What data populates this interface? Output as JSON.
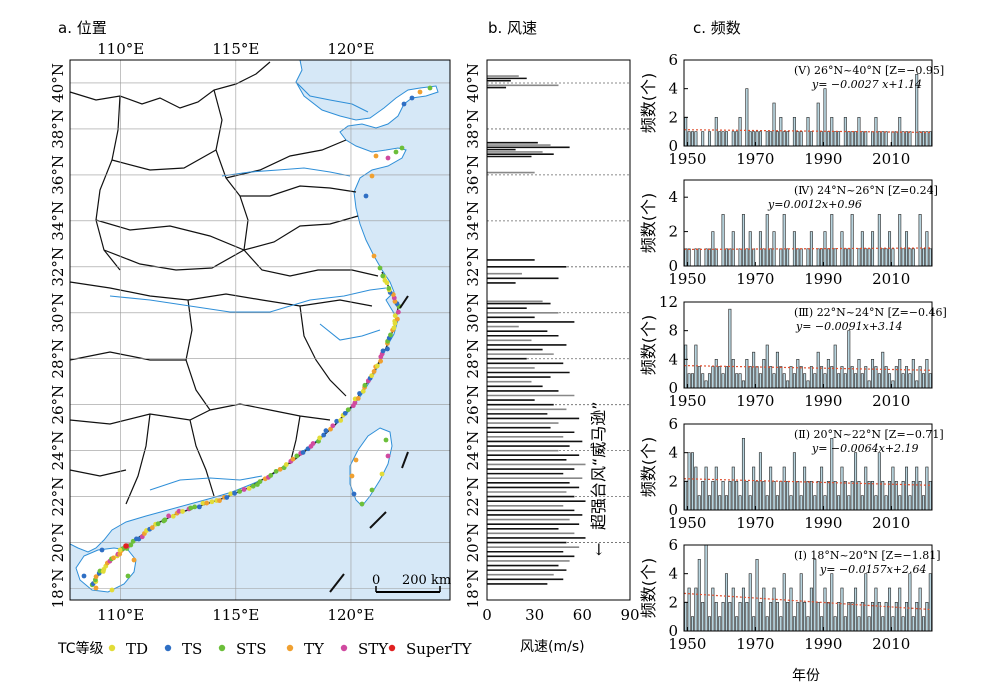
{
  "panels": {
    "a_title": "a. 位置",
    "b_title": "b. 风速",
    "c_title": "c. 频数"
  },
  "map": {
    "lon_ticks": [
      "110°E",
      "115°E",
      "120°E"
    ],
    "lat_ticks": [
      "40°N",
      "38°N",
      "36°N",
      "34°N",
      "32°N",
      "30°N",
      "28°N",
      "26°N",
      "24°N",
      "22°N",
      "20°N",
      "18°N"
    ],
    "scale_bar": {
      "zero": "0",
      "label": "200 km"
    },
    "colors": {
      "sea": "#d6e8f7",
      "land": "#ffffff",
      "river": "#2f8fd8",
      "grid": "#9a9a9a"
    },
    "legend": {
      "title": "TC等级",
      "items": [
        {
          "name": "TD",
          "color": "#e2dc38"
        },
        {
          "name": "TS",
          "color": "#2f6fc4"
        },
        {
          "name": "STS",
          "color": "#6cbf3a"
        },
        {
          "name": "TY",
          "color": "#f0a030"
        },
        {
          "name": "STY",
          "color": "#d04aa0"
        },
        {
          "name": "SuperTY",
          "color": "#e02020"
        }
      ]
    }
  },
  "wind": {
    "xlabel": "风速(m/s)",
    "x_ticks": [
      "0",
      "30",
      "60",
      "90"
    ],
    "xlim": [
      0,
      90
    ],
    "lat_ticks": [
      "40°N",
      "38°N",
      "36°N",
      "34°N",
      "32°N",
      "30°N",
      "28°N",
      "26°N",
      "24°N",
      "22°N",
      "20°N",
      "18°N"
    ],
    "annotation": "超强台风“威马逊”",
    "arrow": "←"
  },
  "freq": {
    "ylabel": "频数(个)",
    "xlabel": "年份",
    "x_ticks": [
      "1950",
      "1970",
      "1990",
      "2010"
    ],
    "bar_color": "#b8d4de",
    "trend_color": "#e05030",
    "panels": [
      {
        "id": "V",
        "region": "(Ⅴ) 26°N~40°N",
        "z": "[Z=−0.95]",
        "trend": "y= −0.0027 x+1.14",
        "ylim": [
          0,
          6
        ],
        "yticks": [
          "0",
          "2",
          "4",
          "6"
        ],
        "slope": -0.0027,
        "intercept": 1.14
      },
      {
        "id": "IV",
        "region": "(Ⅳ) 24°N~26°N",
        "z": "[Z=0.24]",
        "trend": "y=0.0012x+0.96",
        "ylim": [
          0,
          5
        ],
        "yticks": [
          "0",
          "2",
          "4"
        ],
        "slope": 0.0012,
        "intercept": 0.96
      },
      {
        "id": "III",
        "region": "(Ⅲ) 22°N~24°N",
        "z": "[Z=−0.46]",
        "trend": "y= −0.0091x+3.14",
        "ylim": [
          0,
          12
        ],
        "yticks": [
          "0",
          "4",
          "8",
          "12"
        ],
        "slope": -0.0091,
        "intercept": 3.14
      },
      {
        "id": "II",
        "region": "(Ⅱ) 20°N~22°N",
        "z": "[Z=−0.71]",
        "trend": "y= −0.0064x+2.19",
        "ylim": [
          0,
          6
        ],
        "yticks": [
          "0",
          "2",
          "4",
          "6"
        ],
        "slope": -0.0064,
        "intercept": 2.19
      },
      {
        "id": "I",
        "region": "(Ⅰ) 18°N~20°N",
        "z": "[Z=−1.81]",
        "trend": "y= −0.0157x+2.64",
        "ylim": [
          0,
          6
        ],
        "yticks": [
          "0",
          "2",
          "4",
          "6"
        ],
        "slope": -0.0157,
        "intercept": 2.64
      }
    ]
  },
  "chart_data": [
    {
      "type": "bar",
      "panel": "c-V",
      "x": [
        1949,
        1950,
        1951,
        1952,
        1953,
        1954,
        1955,
        1956,
        1957,
        1958,
        1959,
        1960,
        1961,
        1962,
        1963,
        1964,
        1965,
        1966,
        1967,
        1968,
        1969,
        1970,
        1971,
        1972,
        1973,
        1974,
        1975,
        1976,
        1977,
        1978,
        1979,
        1980,
        1981,
        1982,
        1983,
        1984,
        1985,
        1986,
        1987,
        1988,
        1989,
        1990,
        1991,
        1992,
        1993,
        1994,
        1995,
        1996,
        1997,
        1998,
        1999,
        2000,
        2001,
        2002,
        2003,
        2004,
        2005,
        2006,
        2007,
        2008,
        2009,
        2010,
        2011,
        2012,
        2013,
        2014,
        2015,
        2016,
        2017,
        2018,
        2019,
        2020,
        2021
      ],
      "values": [
        2,
        1,
        1,
        1,
        0,
        1,
        0,
        1,
        0,
        2,
        1,
        1,
        1,
        0,
        1,
        1,
        2,
        0,
        4,
        1,
        1,
        1,
        1,
        0,
        1,
        1,
        3,
        1,
        2,
        1,
        1,
        0,
        2,
        1,
        1,
        0,
        2,
        1,
        0,
        3,
        1,
        4,
        1,
        2,
        1,
        1,
        0,
        2,
        1,
        1,
        1,
        2,
        1,
        1,
        0,
        1,
        2,
        1,
        1,
        1,
        0,
        1,
        1,
        2,
        1,
        1,
        1,
        0,
        5,
        1,
        1,
        1,
        1
      ]
    },
    {
      "type": "bar",
      "panel": "c-IV",
      "x": [
        1949,
        1950,
        1951,
        1952,
        1953,
        1954,
        1955,
        1956,
        1957,
        1958,
        1959,
        1960,
        1961,
        1962,
        1963,
        1964,
        1965,
        1966,
        1967,
        1968,
        1969,
        1970,
        1971,
        1972,
        1973,
        1974,
        1975,
        1976,
        1977,
        1978,
        1979,
        1980,
        1981,
        1982,
        1983,
        1984,
        1985,
        1986,
        1987,
        1988,
        1989,
        1990,
        1991,
        1992,
        1993,
        1994,
        1995,
        1996,
        1997,
        1998,
        1999,
        2000,
        2001,
        2002,
        2003,
        2004,
        2005,
        2006,
        2007,
        2008,
        2009,
        2010,
        2011,
        2012,
        2013,
        2014,
        2015,
        2016,
        2017,
        2018,
        2019,
        2020,
        2021
      ],
      "values": [
        1,
        1,
        0,
        1,
        1,
        0,
        1,
        1,
        2,
        1,
        0,
        3,
        1,
        1,
        2,
        0,
        1,
        3,
        1,
        2,
        1,
        0,
        2,
        1,
        3,
        1,
        2,
        0,
        1,
        3,
        1,
        0,
        2,
        1,
        1,
        0,
        1,
        2,
        0,
        1,
        1,
        2,
        1,
        3,
        1,
        0,
        2,
        1,
        1,
        3,
        0,
        1,
        2,
        1,
        1,
        2,
        0,
        3,
        1,
        1,
        2,
        1,
        0,
        3,
        1,
        2,
        1,
        1,
        0,
        3,
        1,
        2,
        1
      ]
    },
    {
      "type": "bar",
      "panel": "c-III",
      "x": [
        1949,
        1950,
        1951,
        1952,
        1953,
        1954,
        1955,
        1956,
        1957,
        1958,
        1959,
        1960,
        1961,
        1962,
        1963,
        1964,
        1965,
        1966,
        1967,
        1968,
        1969,
        1970,
        1971,
        1972,
        1973,
        1974,
        1975,
        1976,
        1977,
        1978,
        1979,
        1980,
        1981,
        1982,
        1983,
        1984,
        1985,
        1986,
        1987,
        1988,
        1989,
        1990,
        1991,
        1992,
        1993,
        1994,
        1995,
        1996,
        1997,
        1998,
        1999,
        2000,
        2001,
        2002,
        2003,
        2004,
        2005,
        2006,
        2007,
        2008,
        2009,
        2010,
        2011,
        2012,
        2013,
        2014,
        2015,
        2016,
        2017,
        2018,
        2019,
        2020,
        2021
      ],
      "values": [
        6,
        2,
        2,
        6,
        3,
        2,
        1,
        2,
        3,
        4,
        3,
        2,
        3,
        11,
        4,
        2,
        2,
        1,
        4,
        3,
        5,
        3,
        2,
        4,
        6,
        3,
        2,
        5,
        3,
        2,
        1,
        3,
        2,
        4,
        3,
        2,
        1,
        3,
        2,
        5,
        3,
        2,
        4,
        3,
        6,
        2,
        3,
        2,
        8,
        3,
        2,
        4,
        2,
        3,
        1,
        4,
        3,
        2,
        5,
        3,
        2,
        1,
        3,
        4,
        2,
        3,
        2,
        4,
        1,
        3,
        2,
        4,
        2
      ]
    },
    {
      "type": "bar",
      "panel": "c-II",
      "x": [
        1949,
        1950,
        1951,
        1952,
        1953,
        1954,
        1955,
        1956,
        1957,
        1958,
        1959,
        1960,
        1961,
        1962,
        1963,
        1964,
        1965,
        1966,
        1967,
        1968,
        1969,
        1970,
        1971,
        1972,
        1973,
        1974,
        1975,
        1976,
        1977,
        1978,
        1979,
        1980,
        1981,
        1982,
        1983,
        1984,
        1985,
        1986,
        1987,
        1988,
        1989,
        1990,
        1991,
        1992,
        1993,
        1994,
        1995,
        1996,
        1997,
        1998,
        1999,
        2000,
        2001,
        2002,
        2003,
        2004,
        2005,
        2006,
        2007,
        2008,
        2009,
        2010,
        2011,
        2012,
        2013,
        2014,
        2015,
        2016,
        2017,
        2018,
        2019,
        2020,
        2021
      ],
      "values": [
        2,
        4,
        4,
        3,
        1,
        2,
        3,
        1,
        2,
        3,
        1,
        2,
        1,
        2,
        3,
        2,
        1,
        5,
        2,
        1,
        3,
        2,
        4,
        2,
        1,
        3,
        2,
        1,
        2,
        3,
        2,
        1,
        4,
        2,
        1,
        3,
        2,
        2,
        1,
        2,
        3,
        1,
        2,
        5,
        2,
        1,
        3,
        2,
        1,
        2,
        4,
        2,
        1,
        3,
        2,
        2,
        1,
        4,
        2,
        1,
        2,
        3,
        2,
        1,
        2,
        3,
        1,
        2,
        3,
        2,
        1,
        3,
        2
      ]
    },
    {
      "type": "bar",
      "panel": "c-I",
      "x": [
        1949,
        1950,
        1951,
        1952,
        1953,
        1954,
        1955,
        1956,
        1957,
        1958,
        1959,
        1960,
        1961,
        1962,
        1963,
        1964,
        1965,
        1966,
        1967,
        1968,
        1969,
        1970,
        1971,
        1972,
        1973,
        1974,
        1975,
        1976,
        1977,
        1978,
        1979,
        1980,
        1981,
        1982,
        1983,
        1984,
        1985,
        1986,
        1987,
        1988,
        1989,
        1990,
        1991,
        1992,
        1993,
        1994,
        1995,
        1996,
        1997,
        1998,
        1999,
        2000,
        2001,
        2002,
        2003,
        2004,
        2005,
        2006,
        2007,
        2008,
        2009,
        2010,
        2011,
        2012,
        2013,
        2014,
        2015,
        2016,
        2017,
        2018,
        2019,
        2020,
        2021
      ],
      "values": [
        2,
        3,
        1,
        3,
        5,
        2,
        6,
        1,
        3,
        2,
        1,
        2,
        4,
        2,
        3,
        1,
        2,
        3,
        2,
        4,
        1,
        5,
        2,
        3,
        1,
        2,
        3,
        2,
        1,
        4,
        2,
        3,
        1,
        2,
        4,
        2,
        1,
        3,
        5,
        2,
        1,
        3,
        2,
        4,
        1,
        2,
        3,
        1,
        2,
        2,
        3,
        1,
        2,
        4,
        1,
        2,
        3,
        2,
        1,
        2,
        3,
        1,
        2,
        3,
        1,
        2,
        4,
        1,
        2,
        3,
        1,
        2,
        4
      ]
    },
    {
      "type": "bar",
      "panel": "b",
      "orientation": "horizontal",
      "lat": [
        40.3,
        40.2,
        40.1,
        39.9,
        39.8,
        37.4,
        37.3,
        37.2,
        37.1,
        37.0,
        36.9,
        36.8,
        36.1,
        32.3,
        32.0,
        31.7,
        31.5,
        31.3,
        30.5,
        30.4,
        30.2,
        30.0,
        29.8,
        29.6,
        29.4,
        29.2,
        29.0,
        28.8,
        28.6,
        28.4,
        28.2,
        28.0,
        27.8,
        27.6,
        27.4,
        27.2,
        27.0,
        26.8,
        26.6,
        26.4,
        26.2,
        26.0,
        25.8,
        25.6,
        25.4,
        25.2,
        25.0,
        24.8,
        24.6,
        24.4,
        24.2,
        24.0,
        23.8,
        23.6,
        23.4,
        23.2,
        23.0,
        22.8,
        22.6,
        22.4,
        22.2,
        22.0,
        21.8,
        21.6,
        21.4,
        21.2,
        21.0,
        20.8,
        20.6,
        20.4,
        20.2,
        20.0,
        19.8,
        19.6,
        19.4,
        19.2,
        19.0,
        18.8,
        18.6,
        18.4,
        18.2
      ],
      "values": [
        20,
        25,
        15,
        45,
        12,
        32,
        40,
        52,
        18,
        35,
        42,
        28,
        30,
        30,
        50,
        22,
        45,
        18,
        35,
        40,
        25,
        45,
        30,
        55,
        20,
        38,
        45,
        28,
        50,
        35,
        42,
        25,
        48,
        30,
        52,
        40,
        28,
        35,
        45,
        55,
        30,
        42,
        50,
        38,
        58,
        45,
        40,
        55,
        48,
        60,
        52,
        45,
        58,
        50,
        62,
        55,
        48,
        60,
        52,
        58,
        50,
        55,
        62,
        48,
        55,
        60,
        52,
        58,
        45,
        55,
        62,
        50,
        58,
        48,
        55,
        52,
        45,
        50,
        42,
        48,
        38
      ],
      "xlabel": "风速(m/s)",
      "xlim": [
        0,
        90
      ]
    }
  ]
}
